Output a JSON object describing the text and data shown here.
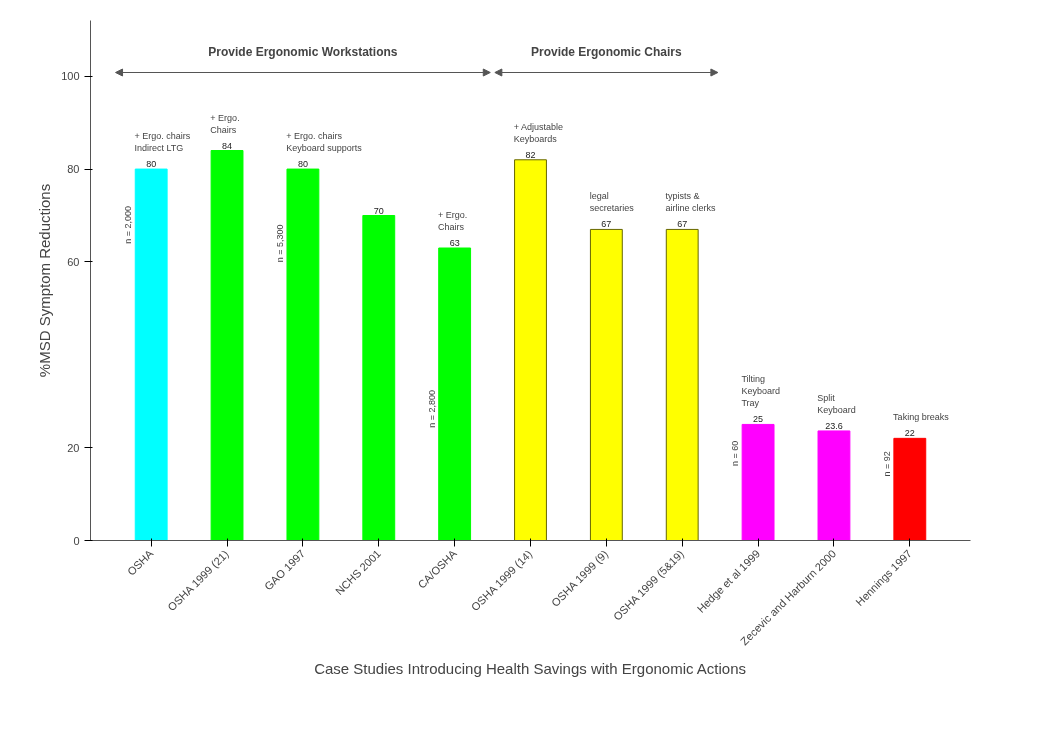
{
  "chart_data": {
    "type": "bar",
    "xlabel": "Case Studies Introducing Health Savings with Ergonomic Actions",
    "ylabel": "%MSD Symptom Reductions",
    "categories": [
      "OSHA",
      "OSHA 1999 (21)",
      "GAO 1997",
      "NCHS 2001",
      "CA/OSHA",
      "OSHA 1999 (14)",
      "OSHA 1999 (9)",
      "OSHA 1999 (5&19)",
      "Hedge et al 1999",
      "Zecevic and Harburn 2000",
      "Hennings 1997"
    ],
    "values": [
      80,
      84,
      80,
      70,
      63,
      82,
      67,
      67,
      25,
      23.6,
      22
    ],
    "colors": [
      "#00ffff",
      "#00ff00",
      "#00ff00",
      "#00ff00",
      "#00ff00",
      "#ffff00",
      "#ffff00",
      "#ffff00",
      "#ff00ff",
      "#ff00ff",
      "#ff0000"
    ],
    "data_labels": true,
    "ylim": [
      0,
      112
    ],
    "yticks": [
      0,
      20,
      60,
      80,
      100
    ],
    "grid": false,
    "annotations": [
      "Provide Ergonomic Workstations",
      "Provide Ergonomic Chairs",
      "+ Ergo. chairs\nIndirect LTG",
      "+ Ergo.\nChairs",
      "+ Ergo. chairs\nKeyboard supports",
      "+ Ergo.\nChairs",
      "+ Adjustable\nKeyboards",
      "legal\nsecretaries",
      "typists &\nairline clerks",
      "Tilting\nKeyboard\nTray",
      "Split\nKeyboard",
      "Taking breaks",
      "n = 2,000",
      "n = 5,300",
      "n = 2,800",
      "n = 60",
      "n = 92"
    ]
  }
}
